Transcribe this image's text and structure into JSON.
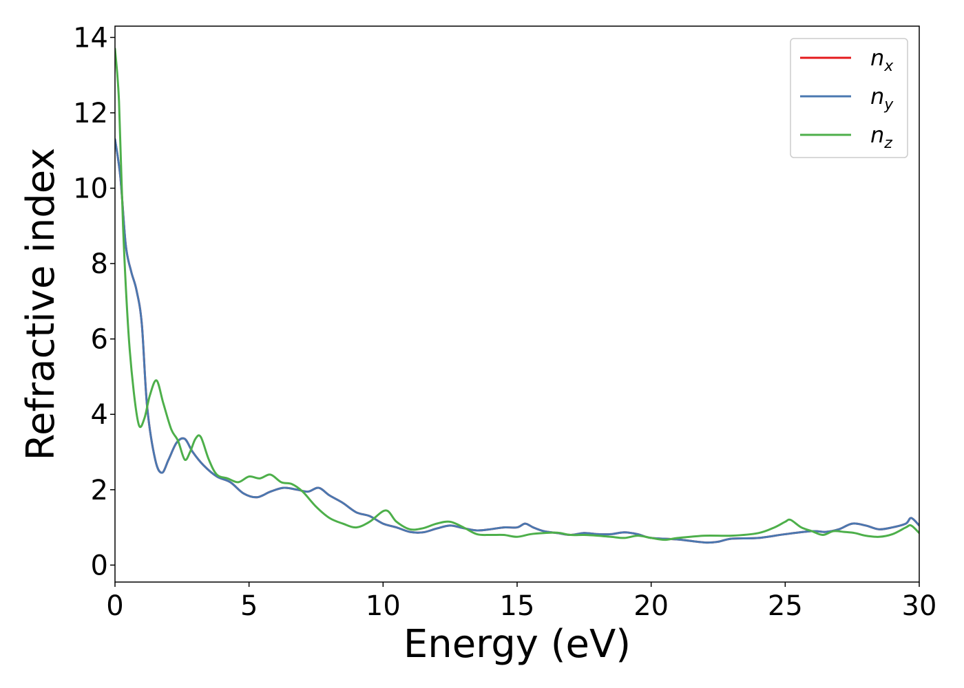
{
  "chart_data": {
    "type": "line",
    "xlabel": "Energy (eV)",
    "ylabel": "Refractive index",
    "xlim": [
      0,
      30
    ],
    "ylim": [
      -0.45,
      14.3
    ],
    "x_ticks": [
      0,
      5,
      10,
      15,
      20,
      25,
      30
    ],
    "y_ticks": [
      0,
      2,
      4,
      6,
      8,
      10,
      12,
      14
    ],
    "grid": false,
    "legend_position": "top-right",
    "series": [
      {
        "name": "n",
        "subscript": "x",
        "color": "#e41a1c",
        "x": [
          0,
          0.2,
          0.4,
          0.6,
          0.8,
          1.0,
          1.2,
          1.5,
          1.75,
          2.0,
          2.3,
          2.6,
          2.9,
          3.3,
          3.8,
          4.3,
          4.8,
          5.3,
          5.8,
          6.3,
          6.8,
          7.2,
          7.6,
          8.0,
          8.5,
          9.0,
          9.5,
          10.0,
          10.5,
          11.0,
          11.5,
          12.0,
          12.5,
          13.0,
          13.5,
          14.0,
          14.5,
          15.0,
          15.3,
          15.6,
          16.0,
          16.5,
          17.0,
          17.5,
          18.0,
          18.5,
          19.0,
          19.5,
          20.0,
          21.0,
          22.0,
          22.5,
          23.0,
          24.0,
          25.0,
          26.0,
          26.5,
          27.0,
          27.5,
          28.0,
          28.5,
          29.0,
          29.5,
          29.7,
          30.0
        ],
        "y": [
          11.3,
          10.3,
          8.5,
          7.8,
          7.3,
          6.4,
          4.2,
          2.8,
          2.45,
          2.8,
          3.25,
          3.35,
          3.0,
          2.65,
          2.35,
          2.2,
          1.9,
          1.8,
          1.95,
          2.05,
          2.0,
          1.95,
          2.05,
          1.85,
          1.65,
          1.4,
          1.3,
          1.1,
          1.0,
          0.88,
          0.87,
          0.97,
          1.05,
          0.98,
          0.92,
          0.95,
          1.0,
          1.0,
          1.1,
          1.0,
          0.9,
          0.85,
          0.8,
          0.85,
          0.82,
          0.82,
          0.87,
          0.82,
          0.72,
          0.68,
          0.6,
          0.62,
          0.7,
          0.72,
          0.82,
          0.9,
          0.88,
          0.95,
          1.1,
          1.05,
          0.95,
          1.0,
          1.1,
          1.25,
          1.05
        ]
      },
      {
        "name": "n",
        "subscript": "y",
        "color": "#4a78b0",
        "x": [
          0,
          0.2,
          0.4,
          0.6,
          0.8,
          1.0,
          1.2,
          1.5,
          1.75,
          2.0,
          2.3,
          2.6,
          2.9,
          3.3,
          3.8,
          4.3,
          4.8,
          5.3,
          5.8,
          6.3,
          6.8,
          7.2,
          7.6,
          8.0,
          8.5,
          9.0,
          9.5,
          10.0,
          10.5,
          11.0,
          11.5,
          12.0,
          12.5,
          13.0,
          13.5,
          14.0,
          14.5,
          15.0,
          15.3,
          15.6,
          16.0,
          16.5,
          17.0,
          17.5,
          18.0,
          18.5,
          19.0,
          19.5,
          20.0,
          21.0,
          22.0,
          22.5,
          23.0,
          24.0,
          25.0,
          26.0,
          26.5,
          27.0,
          27.5,
          28.0,
          28.5,
          29.0,
          29.5,
          29.7,
          30.0
        ],
        "y": [
          11.3,
          10.3,
          8.5,
          7.8,
          7.3,
          6.4,
          4.2,
          2.8,
          2.45,
          2.8,
          3.25,
          3.35,
          3.0,
          2.65,
          2.35,
          2.2,
          1.9,
          1.8,
          1.95,
          2.05,
          2.0,
          1.95,
          2.05,
          1.85,
          1.65,
          1.4,
          1.3,
          1.1,
          1.0,
          0.88,
          0.87,
          0.97,
          1.05,
          0.98,
          0.92,
          0.95,
          1.0,
          1.0,
          1.1,
          1.0,
          0.9,
          0.85,
          0.8,
          0.85,
          0.82,
          0.82,
          0.87,
          0.82,
          0.72,
          0.68,
          0.6,
          0.62,
          0.7,
          0.72,
          0.82,
          0.9,
          0.88,
          0.95,
          1.1,
          1.05,
          0.95,
          1.0,
          1.1,
          1.25,
          1.05
        ]
      },
      {
        "name": "n",
        "subscript": "z",
        "color": "#4daf4a",
        "x": [
          0,
          0.15,
          0.3,
          0.5,
          0.7,
          0.9,
          1.1,
          1.3,
          1.55,
          1.8,
          2.1,
          2.35,
          2.6,
          2.8,
          3.0,
          3.2,
          3.5,
          3.8,
          4.2,
          4.6,
          5.0,
          5.4,
          5.8,
          6.2,
          6.6,
          7.0,
          7.5,
          8.0,
          8.5,
          9.0,
          9.5,
          10.1,
          10.5,
          11.0,
          11.5,
          12.0,
          12.5,
          13.0,
          13.5,
          14.0,
          14.5,
          15.0,
          15.5,
          16.0,
          16.5,
          17.0,
          17.5,
          18.0,
          18.5,
          19.0,
          19.5,
          20.0,
          20.5,
          21.0,
          22.0,
          23.0,
          24.0,
          24.6,
          25.0,
          25.2,
          25.6,
          26.0,
          26.4,
          26.8,
          27.2,
          27.6,
          28.0,
          28.5,
          29.0,
          29.5,
          29.7,
          30.0
        ],
        "y": [
          13.7,
          12.3,
          9.0,
          6.2,
          4.6,
          3.7,
          3.9,
          4.5,
          4.9,
          4.3,
          3.6,
          3.3,
          2.8,
          3.0,
          3.35,
          3.4,
          2.8,
          2.4,
          2.3,
          2.2,
          2.35,
          2.3,
          2.4,
          2.2,
          2.15,
          1.95,
          1.55,
          1.25,
          1.1,
          1.0,
          1.15,
          1.45,
          1.15,
          0.95,
          0.98,
          1.1,
          1.15,
          1.0,
          0.82,
          0.8,
          0.8,
          0.75,
          0.82,
          0.85,
          0.86,
          0.8,
          0.8,
          0.78,
          0.75,
          0.72,
          0.78,
          0.72,
          0.67,
          0.72,
          0.78,
          0.78,
          0.85,
          1.0,
          1.15,
          1.2,
          1.0,
          0.9,
          0.8,
          0.9,
          0.88,
          0.85,
          0.78,
          0.75,
          0.82,
          1.0,
          1.05,
          0.85
        ]
      }
    ]
  }
}
